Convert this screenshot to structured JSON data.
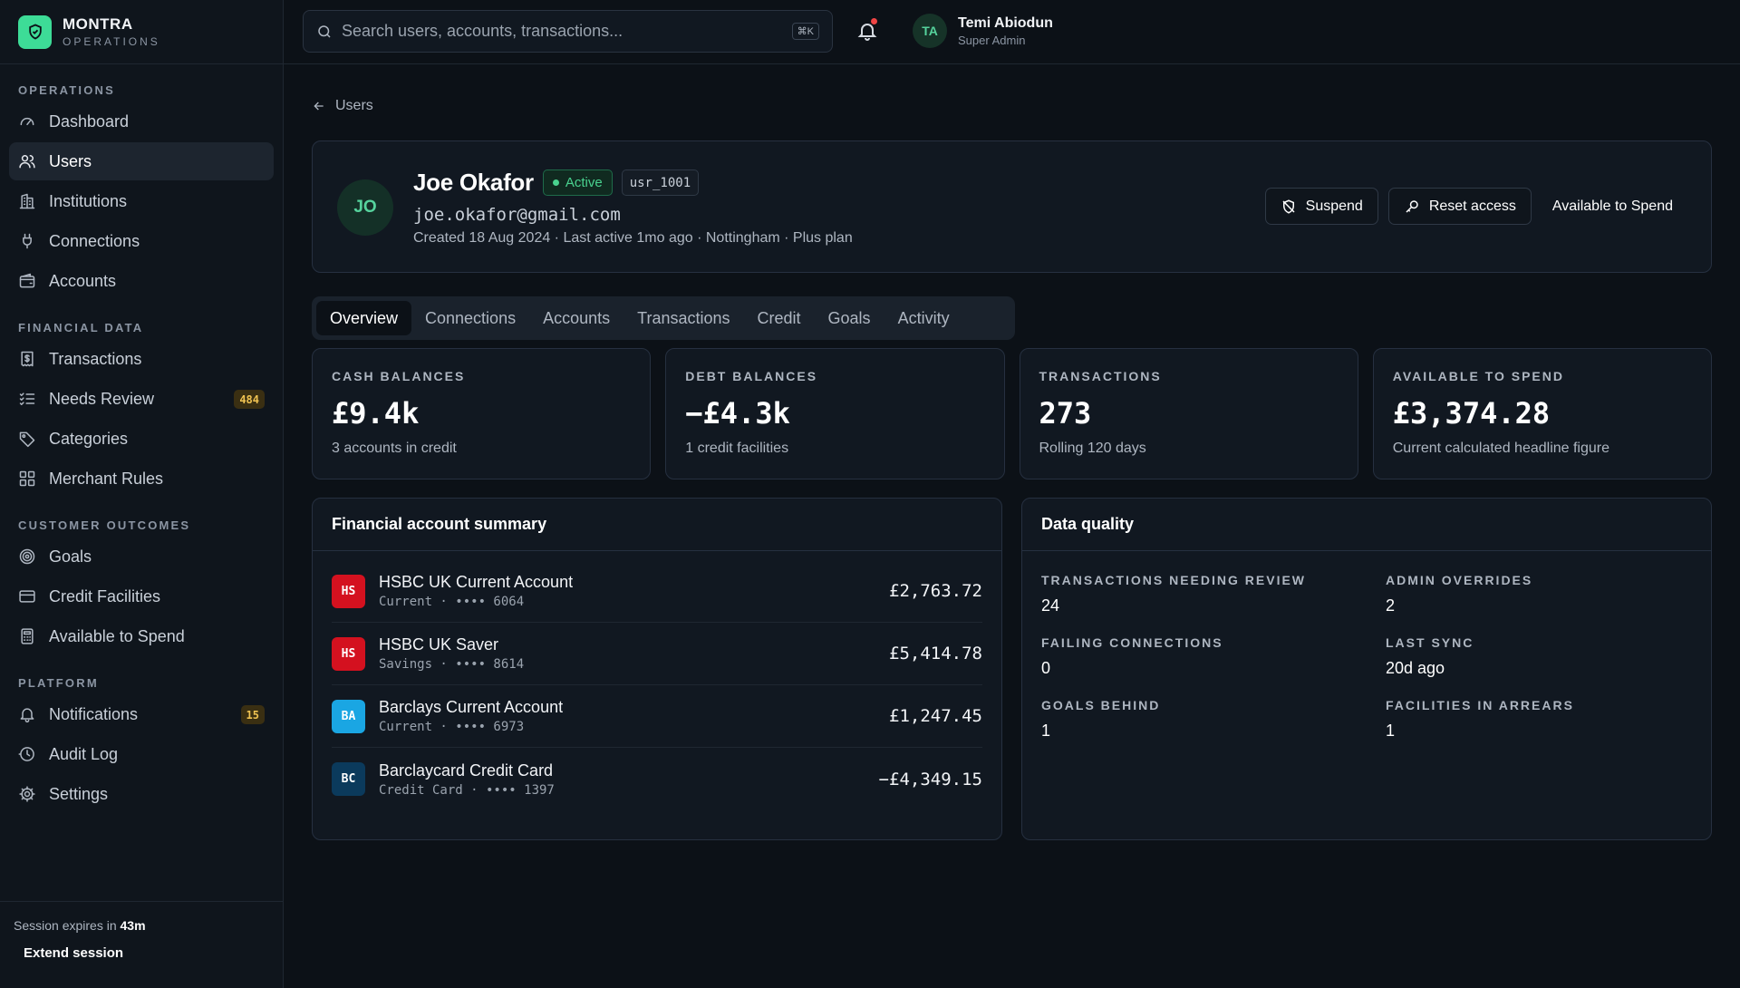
{
  "brand": {
    "name": "MONTRA",
    "sub": "OPERATIONS"
  },
  "nav": [
    {
      "heading": "OPERATIONS",
      "items": [
        {
          "label": "Dashboard",
          "icon": "gauge-icon"
        },
        {
          "label": "Users",
          "icon": "users-icon",
          "active": true
        },
        {
          "label": "Institutions",
          "icon": "building-icon"
        },
        {
          "label": "Connections",
          "icon": "plug-icon"
        },
        {
          "label": "Accounts",
          "icon": "wallet-icon"
        }
      ]
    },
    {
      "heading": "FINANCIAL DATA",
      "items": [
        {
          "label": "Transactions",
          "icon": "receipt-icon"
        },
        {
          "label": "Needs Review",
          "icon": "checklist-icon",
          "badge": "484"
        },
        {
          "label": "Categories",
          "icon": "tag-icon"
        },
        {
          "label": "Merchant Rules",
          "icon": "grid-icon"
        }
      ]
    },
    {
      "heading": "CUSTOMER OUTCOMES",
      "items": [
        {
          "label": "Goals",
          "icon": "target-icon"
        },
        {
          "label": "Credit Facilities",
          "icon": "card-icon"
        },
        {
          "label": "Available to Spend",
          "icon": "calculator-icon"
        }
      ]
    },
    {
      "heading": "PLATFORM",
      "items": [
        {
          "label": "Notifications",
          "icon": "bell-icon",
          "badge": "15"
        },
        {
          "label": "Audit Log",
          "icon": "log-icon"
        },
        {
          "label": "Settings",
          "icon": "gear-icon"
        }
      ]
    }
  ],
  "session": {
    "prefix": "Session expires in",
    "time": "43m",
    "extend": "Extend session"
  },
  "search": {
    "placeholder": "Search users, accounts, transactions...",
    "shortcut": "⌘K"
  },
  "current_user": {
    "initials": "TA",
    "name": "Temi Abiodun",
    "role": "Super Admin"
  },
  "breadcrumb": {
    "back": "Users"
  },
  "profile": {
    "initials": "JO",
    "name": "Joe Okafor",
    "status": "Active",
    "id": "usr_1001",
    "email": "joe.okafor@gmail.com",
    "meta": "Created 18 Aug 2024 · Last active 1mo ago · Nottingham · Plus plan",
    "actions": {
      "suspend": "Suspend",
      "reset": "Reset access",
      "ats": "Available to Spend"
    }
  },
  "tabs": [
    "Overview",
    "Connections",
    "Accounts",
    "Transactions",
    "Credit",
    "Goals",
    "Activity"
  ],
  "stats": [
    {
      "label": "CASH BALANCES",
      "value": "£9.4k",
      "sub": "3 accounts in credit"
    },
    {
      "label": "DEBT BALANCES",
      "value": "−£4.3k",
      "sub": "1 credit facilities"
    },
    {
      "label": "TRANSACTIONS",
      "value": "273",
      "sub": "Rolling 120 days"
    },
    {
      "label": "AVAILABLE TO SPEND",
      "value": "£3,374.28",
      "sub": "Current calculated headline figure"
    }
  ],
  "accounts_panel": {
    "title": "Financial account summary",
    "accounts": [
      {
        "logo": "HS",
        "color": "#d4111f",
        "name": "HSBC UK Current Account",
        "sub": "Current · •••• 6064",
        "balance": "£2,763.72"
      },
      {
        "logo": "HS",
        "color": "#d4111f",
        "name": "HSBC UK Saver",
        "sub": "Savings · •••• 8614",
        "balance": "£5,414.78"
      },
      {
        "logo": "BA",
        "color": "#1aa6e3",
        "name": "Barclays Current Account",
        "sub": "Current · •••• 6973",
        "balance": "£1,247.45"
      },
      {
        "logo": "BC",
        "color": "#0b3a5c",
        "name": "Barclaycard Credit Card",
        "sub": "Credit Card · •••• 1397",
        "balance": "−£4,349.15"
      }
    ]
  },
  "quality_panel": {
    "title": "Data quality",
    "items": [
      {
        "label": "TRANSACTIONS NEEDING REVIEW",
        "value": "24"
      },
      {
        "label": "ADMIN OVERRIDES",
        "value": "2"
      },
      {
        "label": "FAILING CONNECTIONS",
        "value": "0"
      },
      {
        "label": "LAST SYNC",
        "value": "20d ago"
      },
      {
        "label": "GOALS BEHIND",
        "value": "1"
      },
      {
        "label": "FACILITIES IN ARREARS",
        "value": "1"
      }
    ]
  }
}
